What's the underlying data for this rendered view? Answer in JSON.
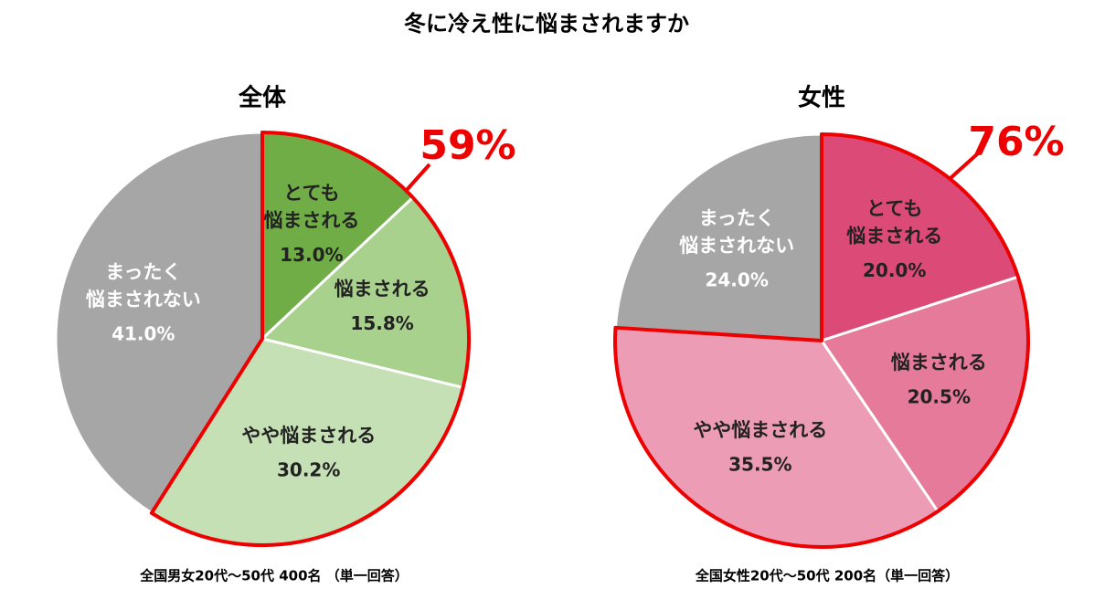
{
  "title": "冬に冷え性に悩まされますか",
  "chart_data": [
    {
      "type": "pie",
      "title": "全体",
      "categories": [
        [
          "とても",
          "悩まされる"
        ],
        [
          "悩まされる"
        ],
        [
          "やや悩まされる"
        ],
        [
          "まったく",
          "悩まされない"
        ]
      ],
      "values": [
        13.0,
        15.8,
        30.2,
        41.0
      ],
      "value_labels": [
        "13.0%",
        "15.8%",
        "30.2%",
        "41.0%"
      ],
      "colors": [
        "#70ad47",
        "#a9d18e",
        "#c5e0b4",
        "#a6a6a6"
      ],
      "annotation": "59%",
      "note": "全国男女20代～50代 400名 （単一回答）"
    },
    {
      "type": "pie",
      "title": "女性",
      "categories": [
        [
          "とても",
          "悩まされる"
        ],
        [
          "悩まされる"
        ],
        [
          "やや悩まされる"
        ],
        [
          "まったく",
          "悩まされない"
        ]
      ],
      "values": [
        20.0,
        20.5,
        35.5,
        24.0
      ],
      "value_labels": [
        "20.0%",
        "20.5%",
        "35.5%",
        "24.0%"
      ],
      "colors": [
        "#dc4a77",
        "#e57a9b",
        "#ec9db5",
        "#a6a6a6"
      ],
      "annotation": "76%",
      "note": "全国女性20代～50代 200名（単一回答）"
    }
  ]
}
